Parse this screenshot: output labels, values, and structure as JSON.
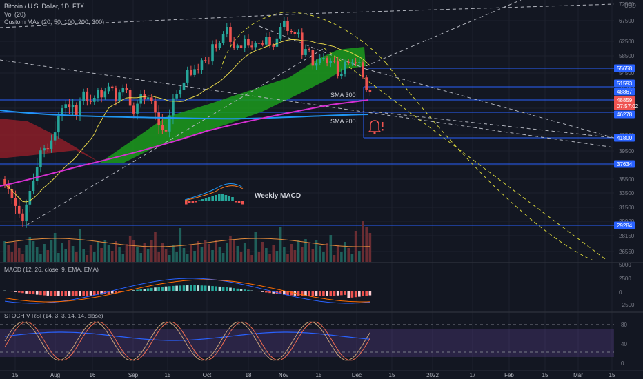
{
  "header": {
    "symbol_line": "Bitcoin / U.S. Dollar, 1D, FTX",
    "vol_label": "Vol (20)",
    "mas_label": "Custom MAs (20, 50, 100, 200, 300)"
  },
  "currency": "USD",
  "panes": {
    "macd_label": "MACD (12, 26, close, 9, EMA, EMA)",
    "stoch_label": "STOCH V RSI (14, 3, 3, 14, 14, close)"
  },
  "annotations": {
    "sma300": "SMA 300",
    "sma200": "SMA 200",
    "weekly_macd": "Weekly MACD"
  },
  "colors": {
    "background": "#131722",
    "up": "#26a69a",
    "down": "#ef5350",
    "sma300": "#d62fd1",
    "sma200": "#2196f3",
    "cloud_green": "#1c9b1c",
    "cloud_red": "#9c1f2a",
    "hline": "#2962ff",
    "dashed": "#b2b5be",
    "yellow_dashed": "#d4d13a"
  },
  "chart_data": {
    "type": "candlestick",
    "main_axis": {
      "ticks": [
        "72500",
        "67500",
        "62500",
        "58500",
        "54500",
        "51593",
        "48867",
        "45500",
        "42500",
        "39500",
        "37500",
        "35500",
        "33500",
        "31500",
        "29900",
        "28150",
        "26550"
      ],
      "price_labels": [
        {
          "value": "55658",
          "color": "#2962ff"
        },
        {
          "value": "51593",
          "color": "#2962ff"
        },
        {
          "value": "48867",
          "color": "#2962ff"
        },
        {
          "value": "48859",
          "color": "#ef5350"
        },
        {
          "value": "07:57:02",
          "color": "#ef5350"
        },
        {
          "value": "46278",
          "color": "#2962ff"
        },
        {
          "value": "41800",
          "color": "#2962ff"
        },
        {
          "value": "37634",
          "color": "#2962ff"
        },
        {
          "value": "29284",
          "color": "#2962ff"
        }
      ],
      "horizontal_levels": [
        55658,
        51593,
        48867,
        46278,
        41800,
        37634,
        29284
      ]
    },
    "macd_axis": {
      "ticks": [
        "5000",
        "2500",
        "0",
        "−2500"
      ]
    },
    "stoch_axis": {
      "ticks": [
        "80",
        "40",
        "0"
      ]
    },
    "x_axis": {
      "ticks": [
        "15",
        "Aug",
        "16",
        "Sep",
        "15",
        "Oct",
        "18",
        "Nov",
        "15",
        "Dec",
        "15",
        "2022",
        "17",
        "Feb",
        "15",
        "Mar",
        "15"
      ]
    },
    "closes": [
      34700,
      34000,
      32800,
      31700,
      30800,
      29900,
      31900,
      33800,
      35300,
      37300,
      39600,
      40000,
      39900,
      41500,
      42800,
      44600,
      45500,
      46300,
      45700,
      46200,
      44700,
      47000,
      48900,
      47000,
      46800,
      47600,
      49300,
      47700,
      49000,
      50400,
      49900,
      47000,
      48700,
      50000,
      49400,
      46000,
      44900,
      46400,
      48300,
      47300,
      47700,
      47000,
      45000,
      43600,
      43100,
      42900,
      44700,
      47500,
      48300,
      49300,
      51600,
      55300,
      53900,
      55400,
      55200,
      57500,
      57400,
      57200,
      61700,
      60700,
      62000,
      64300,
      66000,
      62300,
      60700,
      61300,
      60600,
      63100,
      61300,
      60900,
      62000,
      61900,
      61600,
      63500,
      61400,
      61000,
      63200,
      66000,
      67500,
      65000,
      64700,
      64200,
      64600,
      58700,
      60400,
      60100,
      56200,
      56800,
      58000,
      58000,
      56900,
      57300,
      57200,
      53600,
      54300,
      57100,
      56800,
      57000,
      56900,
      57000,
      53200,
      49500,
      48860
    ]
  }
}
